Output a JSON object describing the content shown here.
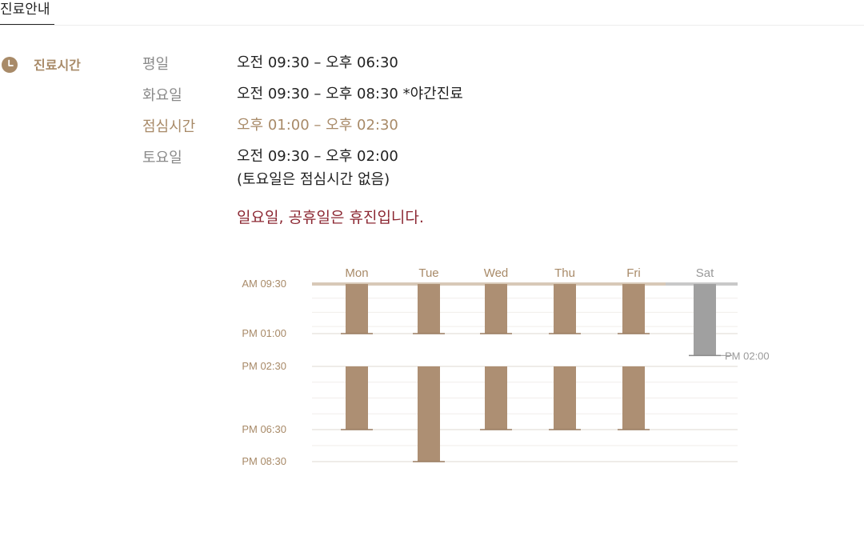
{
  "tab": {
    "label": "진료안내"
  },
  "section": {
    "title": "진료시간",
    "icon": "clock-icon"
  },
  "rows": [
    {
      "label": "평일",
      "value": "오전 09:30 – 오후 06:30"
    },
    {
      "label": "화요일",
      "value": "오전 09:30 – 오후 08:30 *야간진료"
    },
    {
      "label": "점심시간",
      "value": "오후 01:00 – 오후 02:30"
    },
    {
      "label": "토요일",
      "value": "오전 09:30 – 오후 02:00",
      "sub": "(토요일은 점심시간 없음)"
    }
  ],
  "notice": "일요일, 공휴일은 휴진입니다.",
  "colors": {
    "accent": "#a88a68",
    "bar": "#ad8f73",
    "saturday_bar": "#a0a0a0",
    "notice": "#8c2833"
  },
  "chart_data": {
    "type": "bar",
    "categories": [
      "Mon",
      "Tue",
      "Wed",
      "Thu",
      "Fri",
      "Sat"
    ],
    "y_ticks": [
      {
        "label": "AM 09:30",
        "value": 9.5
      },
      {
        "label": "PM 01:00",
        "value": 13.0
      },
      {
        "label": "PM 02:30",
        "value": 14.5
      },
      {
        "label": "PM 06:30",
        "value": 18.5
      },
      {
        "label": "PM 08:30",
        "value": 20.5
      }
    ],
    "bars": [
      {
        "day": "Mon",
        "start": 9.5,
        "end": 13.0
      },
      {
        "day": "Mon",
        "start": 14.5,
        "end": 18.5
      },
      {
        "day": "Tue",
        "start": 9.5,
        "end": 13.0
      },
      {
        "day": "Tue",
        "start": 14.5,
        "end": 20.5
      },
      {
        "day": "Wed",
        "start": 9.5,
        "end": 13.0
      },
      {
        "day": "Wed",
        "start": 14.5,
        "end": 18.5
      },
      {
        "day": "Thu",
        "start": 9.5,
        "end": 13.0
      },
      {
        "day": "Thu",
        "start": 14.5,
        "end": 18.5
      },
      {
        "day": "Fri",
        "start": 9.5,
        "end": 13.0
      },
      {
        "day": "Fri",
        "start": 14.5,
        "end": 18.5
      },
      {
        "day": "Sat",
        "start": 9.5,
        "end": 14.0
      }
    ],
    "annotation": {
      "label": "PM 02:00",
      "day": "Sat",
      "value": 14.0
    },
    "ylim": [
      9.5,
      20.5
    ],
    "grid": true
  }
}
